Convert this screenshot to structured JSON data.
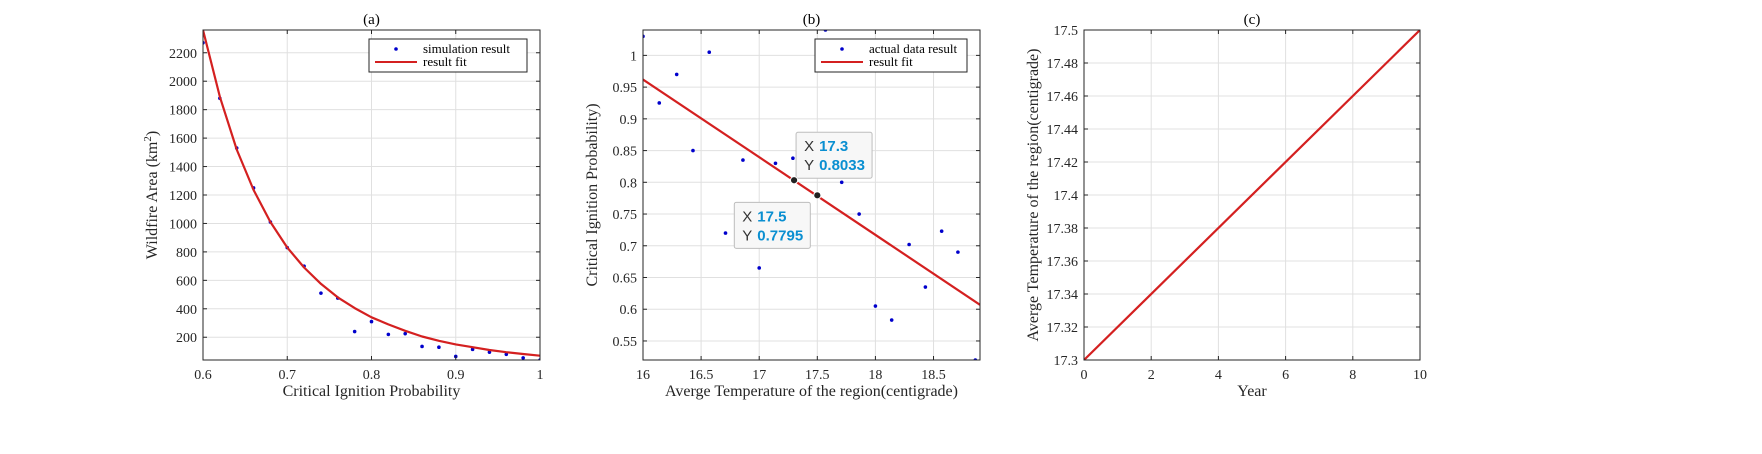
{
  "colors": {
    "points": "#0000cc",
    "fit": "#d42020",
    "grid": "#e0e0e0",
    "axis": "#262626"
  },
  "chart_data": [
    {
      "type": "scatter",
      "title": "(a)",
      "xlabel": "Critical Ignition Probability",
      "ylabel_main": "Wildfire Area (km",
      "ylabel_sup": "2",
      "ylabel_end": ")",
      "xlim": [
        0.6,
        1.0
      ],
      "ylim": [
        40,
        2360
      ],
      "xticks": [
        0.6,
        0.7,
        0.8,
        0.9,
        1.0
      ],
      "xtick_labels": [
        "0.6",
        "0.7",
        "0.8",
        "0.9",
        "1"
      ],
      "yticks": [
        200,
        400,
        600,
        800,
        1000,
        1200,
        1400,
        1600,
        1800,
        2000,
        2200
      ],
      "ytick_labels": [
        "200",
        "400",
        "600",
        "800",
        "1000",
        "1200",
        "1400",
        "1600",
        "1800",
        "2000",
        "2200"
      ],
      "grid": true,
      "legend": {
        "placement": "top-right",
        "points_label": "simulation result",
        "fit_label": "result fit"
      },
      "series": [
        {
          "kind": "points",
          "x": [
            0.6,
            0.62,
            0.64,
            0.66,
            0.68,
            0.7,
            0.72,
            0.74,
            0.76,
            0.78,
            0.8,
            0.82,
            0.84,
            0.86,
            0.88,
            0.9,
            0.92,
            0.94,
            0.96,
            0.98,
            1.0
          ],
          "y": [
            2270,
            1880,
            1530,
            1250,
            1010,
            830,
            700,
            510,
            475,
            240,
            310,
            220,
            225,
            135,
            130,
            65,
            115,
            95,
            80,
            55,
            40
          ]
        },
        {
          "kind": "fit",
          "x": [
            0.6,
            0.62,
            0.64,
            0.66,
            0.68,
            0.7,
            0.72,
            0.74,
            0.76,
            0.78,
            0.8,
            0.82,
            0.84,
            0.86,
            0.88,
            0.9,
            0.92,
            0.94,
            0.96,
            0.98,
            1.0
          ],
          "y": [
            2360,
            1890,
            1520,
            1235,
            1010,
            830,
            690,
            575,
            480,
            405,
            340,
            290,
            245,
            205,
            175,
            150,
            130,
            110,
            95,
            82,
            70
          ]
        }
      ]
    },
    {
      "type": "scatter",
      "title": "(b)",
      "xlabel": "Averge Temperature of the region(centigrade)",
      "ylabel": "Critical Ignition Probability)",
      "xlim": [
        16,
        18.9
      ],
      "ylim": [
        0.52,
        1.04
      ],
      "xticks": [
        16,
        16.5,
        17,
        17.5,
        18,
        18.5
      ],
      "xtick_labels": [
        "16",
        "16.5",
        "17",
        "17.5",
        "18",
        "18.5"
      ],
      "yticks": [
        0.55,
        0.6,
        0.65,
        0.7,
        0.75,
        0.8,
        0.85,
        0.9,
        0.95,
        1.0
      ],
      "ytick_labels": [
        "0.55",
        "0.6",
        "0.65",
        "0.7",
        "0.75",
        "0.8",
        "0.85",
        "0.9",
        "0.95",
        "1"
      ],
      "grid": true,
      "legend": {
        "placement": "top-right",
        "points_label": "actual data result",
        "fit_label": "result fit"
      },
      "series": [
        {
          "kind": "points",
          "x": [
            16.0,
            16.14,
            16.29,
            16.43,
            16.57,
            16.71,
            16.86,
            17.0,
            17.14,
            17.29,
            17.43,
            17.57,
            17.71,
            17.86,
            18.0,
            18.14,
            18.29,
            18.43,
            18.57,
            18.71,
            18.86
          ],
          "y": [
            1.03,
            0.925,
            0.97,
            0.85,
            1.005,
            0.72,
            0.835,
            0.665,
            0.83,
            0.838,
            0.81,
            1.04,
            0.8,
            0.75,
            0.605,
            0.583,
            0.702,
            0.635,
            0.723,
            0.69,
            0.52
          ]
        },
        {
          "kind": "fit",
          "x": [
            16.0,
            18.9
          ],
          "y": [
            0.962,
            0.607
          ]
        }
      ],
      "datatips": [
        {
          "x": 17.3,
          "y": 0.8033,
          "x_label": "X",
          "y_label": "Y",
          "x_text": "17.3",
          "y_text": "0.8033",
          "box_side": "upper-right"
        },
        {
          "x": 17.5,
          "y": 0.7795,
          "x_label": "X",
          "y_label": "Y",
          "x_text": "17.5",
          "y_text": "0.7795",
          "box_side": "lower-left"
        }
      ]
    },
    {
      "type": "line",
      "title": "(c)",
      "xlabel": "Year",
      "ylabel": "Averge Temperature of the region(centigrade)",
      "xlim": [
        0,
        10
      ],
      "ylim": [
        17.3,
        17.5
      ],
      "xticks": [
        0,
        2,
        4,
        6,
        8,
        10
      ],
      "xtick_labels": [
        "0",
        "2",
        "4",
        "6",
        "8",
        "10"
      ],
      "yticks": [
        17.3,
        17.32,
        17.34,
        17.36,
        17.38,
        17.4,
        17.42,
        17.44,
        17.46,
        17.48,
        17.5
      ],
      "ytick_labels": [
        "17.3",
        "17.32",
        "17.34",
        "17.36",
        "17.38",
        "17.4",
        "17.42",
        "17.44",
        "17.46",
        "17.48",
        "17.5"
      ],
      "grid": true,
      "series": [
        {
          "kind": "fit",
          "x": [
            0,
            10
          ],
          "y": [
            17.3,
            17.5
          ]
        }
      ]
    }
  ]
}
